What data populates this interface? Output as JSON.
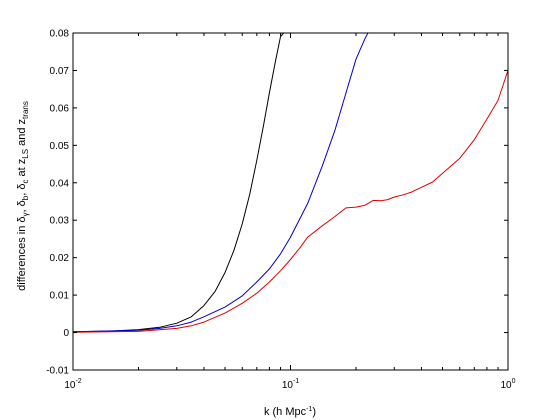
{
  "chart_data": {
    "type": "line",
    "xscale": "log",
    "xlim": [
      0.01,
      1
    ],
    "ylim": [
      -0.01,
      0.08
    ],
    "grid": false,
    "legend": "none",
    "x_ticks": [
      {
        "base": "10",
        "exp": "-2",
        "value": 0.01
      },
      {
        "base": "10",
        "exp": "-1",
        "value": 0.1
      },
      {
        "base": "10",
        "exp": "0",
        "value": 1
      }
    ],
    "y_ticks": [
      "-0.01",
      "0",
      "0.01",
      "0.02",
      "0.03",
      "0.04",
      "0.05",
      "0.06",
      "0.07",
      "0.08"
    ],
    "y_tick_values": [
      -0.01,
      0,
      0.01,
      0.02,
      0.03,
      0.04,
      0.05,
      0.06,
      0.07,
      0.08
    ],
    "xlabel": {
      "prefix": "k (h Mpc",
      "sup": "-1",
      "suffix": ")"
    },
    "ylabel": {
      "t1": "differences in δ",
      "s1": "γ",
      "t2": ", δ",
      "s2": "b",
      "t3": ", δ",
      "s3": "c",
      "t4": " at z",
      "s4": "LS",
      "t5": " and z",
      "s5": "trans"
    },
    "series": [
      {
        "color": "#000000",
        "x": [
          0.01,
          0.015,
          0.02,
          0.025,
          0.03,
          0.035,
          0.04,
          0.045,
          0.05,
          0.055,
          0.06,
          0.065,
          0.07,
          0.075,
          0.08,
          0.085,
          0.09,
          0.093
        ],
        "y": [
          0.0002,
          0.0004,
          0.0008,
          0.0014,
          0.0025,
          0.0042,
          0.0072,
          0.011,
          0.016,
          0.022,
          0.029,
          0.037,
          0.046,
          0.055,
          0.064,
          0.072,
          0.079,
          0.08
        ]
      },
      {
        "color": "#0000cc",
        "x": [
          0.01,
          0.02,
          0.025,
          0.03,
          0.035,
          0.04,
          0.05,
          0.06,
          0.07,
          0.08,
          0.09,
          0.1,
          0.12,
          0.14,
          0.16,
          0.18,
          0.2,
          0.22,
          0.227
        ],
        "y": [
          0.0002,
          0.0006,
          0.0011,
          0.0018,
          0.0028,
          0.0042,
          0.0068,
          0.0098,
          0.0135,
          0.017,
          0.021,
          0.0255,
          0.0345,
          0.0445,
          0.054,
          0.064,
          0.073,
          0.0785,
          0.08
        ]
      },
      {
        "color": "#dd0000",
        "x": [
          0.01,
          0.02,
          0.03,
          0.035,
          0.04,
          0.05,
          0.06,
          0.07,
          0.08,
          0.09,
          0.1,
          0.11,
          0.12,
          0.14,
          0.16,
          0.18,
          0.2,
          0.22,
          0.24,
          0.26,
          0.28,
          0.3,
          0.33,
          0.36,
          0.4,
          0.45,
          0.5,
          0.6,
          0.7,
          0.8,
          0.9,
          1.0
        ],
        "y": [
          0.0001,
          0.0003,
          0.0011,
          0.0018,
          0.0028,
          0.0052,
          0.0078,
          0.0105,
          0.0135,
          0.0165,
          0.0195,
          0.0225,
          0.0255,
          0.0285,
          0.031,
          0.0333,
          0.0335,
          0.034,
          0.0353,
          0.0352,
          0.0355,
          0.0362,
          0.0368,
          0.0375,
          0.0388,
          0.0402,
          0.0425,
          0.0465,
          0.0515,
          0.057,
          0.062,
          0.07
        ]
      }
    ]
  }
}
